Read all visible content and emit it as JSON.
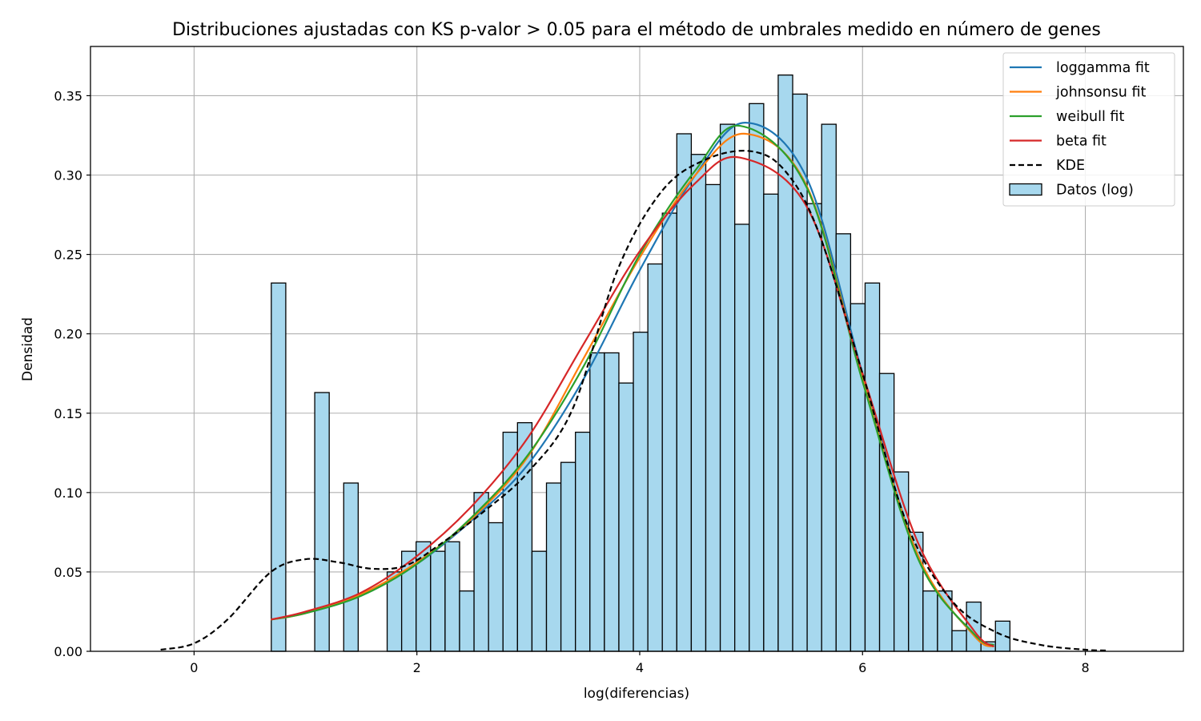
{
  "chart_data": {
    "type": "histogram+line",
    "title": "Distribuciones ajustadas con KS p-valor > 0.05 para el método de umbrales medido en número de genes",
    "xlabel": "log(diferencias)",
    "ylabel": "Densidad",
    "xlim": [
      -0.93,
      8.88
    ],
    "ylim": [
      0,
      0.381
    ],
    "xticks": [
      0,
      2,
      4,
      6,
      8
    ],
    "yticks": [
      0.0,
      0.05,
      0.1,
      0.15,
      0.2,
      0.25,
      0.3,
      0.35
    ],
    "xtick_labels": [
      "0",
      "2",
      "4",
      "6",
      "8"
    ],
    "ytick_labels": [
      "0.00",
      "0.05",
      "0.10",
      "0.15",
      "0.20",
      "0.25",
      "0.30",
      "0.35"
    ],
    "grid": true,
    "legend_position": "upper right",
    "histogram": {
      "name": "Datos (log)",
      "color": "#a7d8ee",
      "edge_color": "#000000",
      "bin_start": 0.693,
      "bin_width": 0.13,
      "densities": [
        0.232,
        0,
        0,
        0.163,
        0,
        0.106,
        0,
        0,
        0.05,
        0.063,
        0.069,
        0.063,
        0.069,
        0.038,
        0.1,
        0.081,
        0.138,
        0.144,
        0.063,
        0.106,
        0.119,
        0.138,
        0.188,
        0.188,
        0.169,
        0.201,
        0.244,
        0.276,
        0.326,
        0.313,
        0.294,
        0.332,
        0.269,
        0.345,
        0.288,
        0.363,
        0.351,
        0.282,
        0.332,
        0.263,
        0.219,
        0.232,
        0.175,
        0.113,
        0.075,
        0.038,
        0.038,
        0.013,
        0.031,
        0.006,
        0.019
      ]
    },
    "series": [
      {
        "name": "loggamma fit",
        "color": "#1f77b4",
        "dash": "solid",
        "x": [
          0.69,
          1.0,
          1.5,
          2.0,
          2.5,
          3.0,
          3.5,
          4.0,
          4.5,
          4.95,
          5.5,
          6.0,
          6.5,
          7.0,
          7.18
        ],
        "y": [
          0.02,
          0.024,
          0.035,
          0.055,
          0.083,
          0.118,
          0.172,
          0.24,
          0.3,
          0.333,
          0.298,
          0.175,
          0.06,
          0.01,
          0.003
        ]
      },
      {
        "name": "johnsonsu fit",
        "color": "#ff7f0e",
        "dash": "solid",
        "x": [
          0.69,
          1.0,
          1.5,
          2.0,
          2.5,
          3.0,
          3.5,
          4.0,
          4.5,
          4.95,
          5.5,
          6.0,
          6.5,
          7.0,
          7.18
        ],
        "y": [
          0.02,
          0.024,
          0.036,
          0.056,
          0.084,
          0.123,
          0.185,
          0.248,
          0.3,
          0.326,
          0.293,
          0.172,
          0.06,
          0.01,
          0.003
        ]
      },
      {
        "name": "weibull fit",
        "color": "#2ca02c",
        "dash": "solid",
        "x": [
          0.69,
          1.0,
          1.5,
          2.0,
          2.5,
          3.0,
          3.5,
          4.0,
          4.5,
          4.9,
          5.5,
          6.0,
          6.5,
          7.0,
          7.18
        ],
        "y": [
          0.02,
          0.024,
          0.035,
          0.055,
          0.085,
          0.124,
          0.18,
          0.25,
          0.303,
          0.331,
          0.292,
          0.17,
          0.058,
          0.011,
          0.004
        ]
      },
      {
        "name": "beta fit",
        "color": "#d62728",
        "dash": "solid",
        "x": [
          0.69,
          1.0,
          1.5,
          2.0,
          2.5,
          3.0,
          3.5,
          4.0,
          4.5,
          4.9,
          5.5,
          6.0,
          6.5,
          7.0,
          7.18
        ],
        "y": [
          0.02,
          0.025,
          0.037,
          0.06,
          0.092,
          0.135,
          0.194,
          0.252,
          0.295,
          0.311,
          0.28,
          0.175,
          0.068,
          0.013,
          0.003
        ]
      },
      {
        "name": "KDE",
        "color": "#000000",
        "dash": "dashed",
        "x": [
          -0.3,
          0.0,
          0.3,
          0.69,
          1.0,
          1.3,
          1.6,
          1.9,
          2.2,
          2.6,
          3.0,
          3.4,
          3.8,
          4.2,
          4.6,
          5.0,
          5.3,
          5.6,
          6.0,
          6.4,
          6.8,
          7.2,
          7.6,
          8.0,
          8.2
        ],
        "y": [
          0.001,
          0.005,
          0.02,
          0.05,
          0.058,
          0.056,
          0.052,
          0.054,
          0.067,
          0.088,
          0.113,
          0.153,
          0.24,
          0.29,
          0.31,
          0.315,
          0.303,
          0.265,
          0.175,
          0.08,
          0.032,
          0.012,
          0.004,
          0.001,
          0.0005
        ]
      }
    ]
  }
}
